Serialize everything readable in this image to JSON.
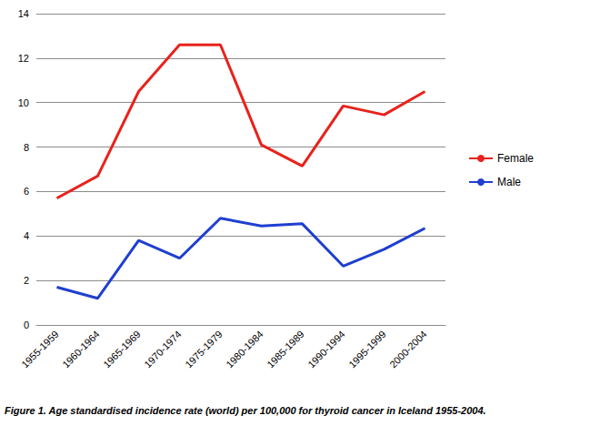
{
  "chart_data": {
    "type": "line",
    "title": "Figure 1. Age standardised incidence rate (world) per 100,000 for thyroid cancer in Iceland 1955-2004.",
    "categories": [
      "1955-1959",
      "1960-1964",
      "1965-1969",
      "1970-1974",
      "1975-1979",
      "1980-1984",
      "1985-1989",
      "1990-1994",
      "1995-1999",
      "2000-2004"
    ],
    "series": [
      {
        "name": "Female",
        "color": "#e8221c",
        "values": [
          5.7,
          6.7,
          10.5,
          12.6,
          12.6,
          8.1,
          7.15,
          9.85,
          9.45,
          10.5
        ]
      },
      {
        "name": "Male",
        "color": "#1f3fd0",
        "values": [
          1.7,
          1.2,
          3.8,
          3.0,
          4.8,
          4.45,
          4.55,
          2.65,
          3.4,
          4.35
        ]
      }
    ],
    "ylim": [
      0,
      14
    ],
    "yticks": [
      0,
      2,
      4,
      6,
      8,
      10,
      12,
      14
    ],
    "grid": true,
    "legend": "right",
    "marker": "none"
  }
}
